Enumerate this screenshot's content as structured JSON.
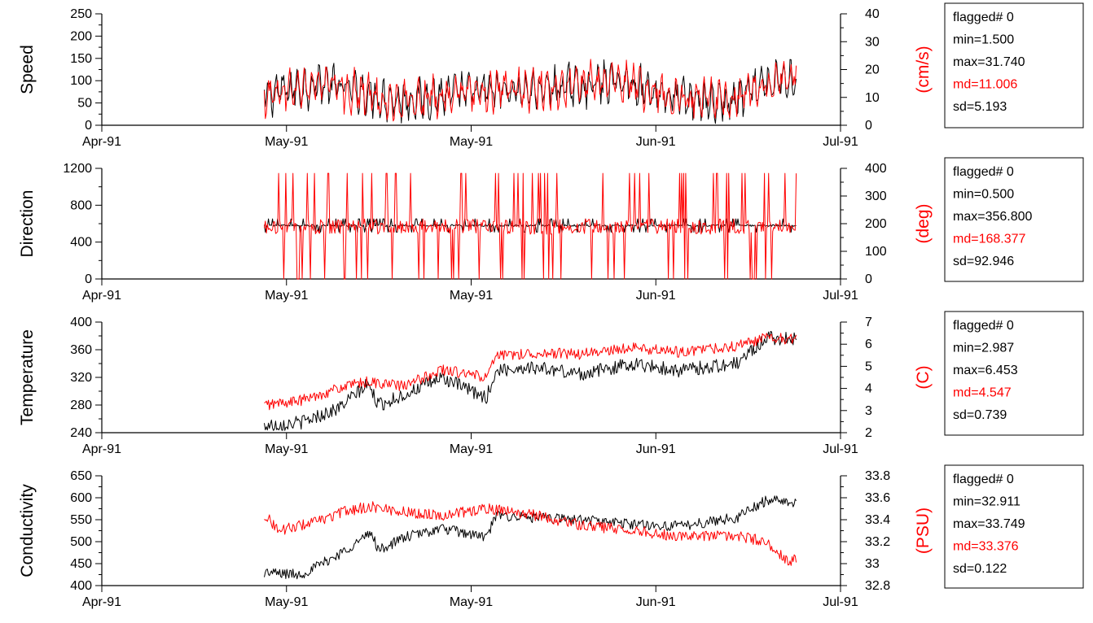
{
  "colors": {
    "primary_series": "#000000",
    "secondary_series": "#ff0000",
    "axes": "#000000"
  },
  "chart_data": [
    {
      "type": "line",
      "left_axis": {
        "label": "Speed",
        "ylim": [
          0,
          250
        ],
        "ticks": [
          "0",
          "50",
          "100",
          "150",
          "200",
          "250"
        ]
      },
      "right_axis": {
        "label": "(cm/s)",
        "ylim": [
          0,
          40
        ],
        "ticks": [
          "0",
          "10",
          "20",
          "30",
          "40"
        ]
      },
      "x_ticks": [
        "Apr-91",
        "May-91",
        "May-91",
        "Jun-91",
        "Jul-91"
      ],
      "series": [
        {
          "color": "#000000",
          "axis": "left",
          "x": [
            0.22,
            0.3,
            0.4,
            0.5,
            0.6,
            0.7,
            0.78,
            0.85,
            0.9,
            0.94
          ],
          "values": [
            70,
            95,
            55,
            75,
            80,
            100,
            60,
            50,
            90,
            110
          ],
          "amplitude": 50
        },
        {
          "color": "#ff0000",
          "axis": "right",
          "x": [
            0.22,
            0.3,
            0.4,
            0.5,
            0.6,
            0.7,
            0.78,
            0.85,
            0.9,
            0.94
          ],
          "values": [
            11,
            15,
            8,
            12,
            13,
            16,
            10,
            8,
            15,
            18
          ],
          "amplitude": 8
        }
      ],
      "stats": [
        {
          "text": "flagged# 0",
          "highlight": false
        },
        {
          "text": "min=1.500",
          "highlight": false
        },
        {
          "text": "max=31.740",
          "highlight": false
        },
        {
          "text": "md=11.006",
          "highlight": true
        },
        {
          "text": "sd=5.193",
          "highlight": false
        }
      ]
    },
    {
      "type": "line",
      "left_axis": {
        "label": "Direction",
        "ylim": [
          0,
          1200
        ],
        "ticks": [
          "0",
          "400",
          "800",
          "1200"
        ]
      },
      "right_axis": {
        "label": "(deg)",
        "ylim": [
          0,
          400
        ],
        "ticks": [
          "0",
          "100",
          "200",
          "300",
          "400"
        ]
      },
      "x_ticks": [
        "Apr-91",
        "May-91",
        "May-91",
        "Jun-91",
        "Jul-91"
      ],
      "series": [
        {
          "color": "#000000",
          "axis": "left",
          "x": [
            0.22,
            0.94
          ],
          "values": [
            580,
            580
          ],
          "amplitude": 60
        },
        {
          "color": "#ff0000",
          "axis": "right",
          "x": [
            0.22,
            0.94
          ],
          "values": [
            190,
            190
          ],
          "amplitude": 160
        }
      ],
      "stats": [
        {
          "text": "flagged# 0",
          "highlight": false
        },
        {
          "text": "min=0.500",
          "highlight": false
        },
        {
          "text": "max=356.800",
          "highlight": false
        },
        {
          "text": "md=168.377",
          "highlight": true
        },
        {
          "text": "sd=92.946",
          "highlight": false
        }
      ]
    },
    {
      "type": "line",
      "left_axis": {
        "label": "Temperature",
        "ylim": [
          240,
          400
        ],
        "ticks": [
          "240",
          "280",
          "320",
          "360",
          "400"
        ]
      },
      "right_axis": {
        "label": "(C)",
        "ylim": [
          2,
          7
        ],
        "ticks": [
          "2",
          "3",
          "4",
          "5",
          "6",
          "7"
        ]
      },
      "x_ticks": [
        "Apr-91",
        "May-91",
        "May-91",
        "Jun-91",
        "Jul-91"
      ],
      "series": [
        {
          "color": "#000000",
          "axis": "left",
          "x": [
            0.22,
            0.27,
            0.32,
            0.36,
            0.375,
            0.41,
            0.46,
            0.52,
            0.535,
            0.58,
            0.65,
            0.72,
            0.78,
            0.86,
            0.9,
            0.94
          ],
          "values": [
            250,
            255,
            275,
            310,
            280,
            295,
            320,
            290,
            330,
            335,
            325,
            340,
            330,
            340,
            378,
            375
          ],
          "amplitude": 10
        },
        {
          "color": "#ff0000",
          "axis": "right",
          "x": [
            0.22,
            0.27,
            0.32,
            0.36,
            0.41,
            0.46,
            0.52,
            0.535,
            0.58,
            0.65,
            0.72,
            0.78,
            0.86,
            0.9,
            0.94
          ],
          "values": [
            3.25,
            3.45,
            4.0,
            4.3,
            4.1,
            4.85,
            4.5,
            5.45,
            5.6,
            5.55,
            5.85,
            5.65,
            5.9,
            6.3,
            6.2
          ],
          "amplitude": 0.25
        }
      ],
      "stats": [
        {
          "text": "flagged# 0",
          "highlight": false
        },
        {
          "text": "min=2.987",
          "highlight": false
        },
        {
          "text": "max=6.453",
          "highlight": false
        },
        {
          "text": "md=4.547",
          "highlight": true
        },
        {
          "text": "sd=0.739",
          "highlight": false
        }
      ]
    },
    {
      "type": "line",
      "left_axis": {
        "label": "Conductivity",
        "ylim": [
          400,
          650
        ],
        "ticks": [
          "400",
          "450",
          "500",
          "550",
          "600",
          "650"
        ]
      },
      "right_axis": {
        "label": "(PSU)",
        "ylim": [
          32.8,
          33.8
        ],
        "ticks": [
          "32.8",
          "33",
          "33.2",
          "33.4",
          "33.6",
          "33.8"
        ]
      },
      "x_ticks": [
        "Apr-91",
        "May-91",
        "May-91",
        "Jun-91",
        "Jul-91"
      ],
      "series": [
        {
          "color": "#000000",
          "axis": "left",
          "x": [
            0.22,
            0.27,
            0.32,
            0.365,
            0.375,
            0.41,
            0.46,
            0.52,
            0.535,
            0.58,
            0.65,
            0.72,
            0.78,
            0.86,
            0.9,
            0.94
          ],
          "values": [
            430,
            425,
            470,
            520,
            480,
            510,
            530,
            510,
            560,
            555,
            550,
            540,
            535,
            555,
            595,
            590
          ],
          "amplitude": 12
        },
        {
          "color": "#ff0000",
          "axis": "right",
          "x": [
            0.22,
            0.24,
            0.3,
            0.33,
            0.365,
            0.41,
            0.46,
            0.52,
            0.58,
            0.65,
            0.72,
            0.78,
            0.86,
            0.9,
            0.93,
            0.94
          ],
          "values": [
            33.45,
            33.3,
            33.4,
            33.48,
            33.52,
            33.47,
            33.44,
            33.5,
            33.45,
            33.35,
            33.3,
            33.25,
            33.25,
            33.2,
            33.0,
            33.05
          ],
          "amplitude": 0.05
        }
      ],
      "stats": [
        {
          "text": "flagged# 0",
          "highlight": false
        },
        {
          "text": "min=32.911",
          "highlight": false
        },
        {
          "text": "max=33.749",
          "highlight": false
        },
        {
          "text": "md=33.376",
          "highlight": true
        },
        {
          "text": "sd=0.122",
          "highlight": false
        }
      ]
    }
  ]
}
